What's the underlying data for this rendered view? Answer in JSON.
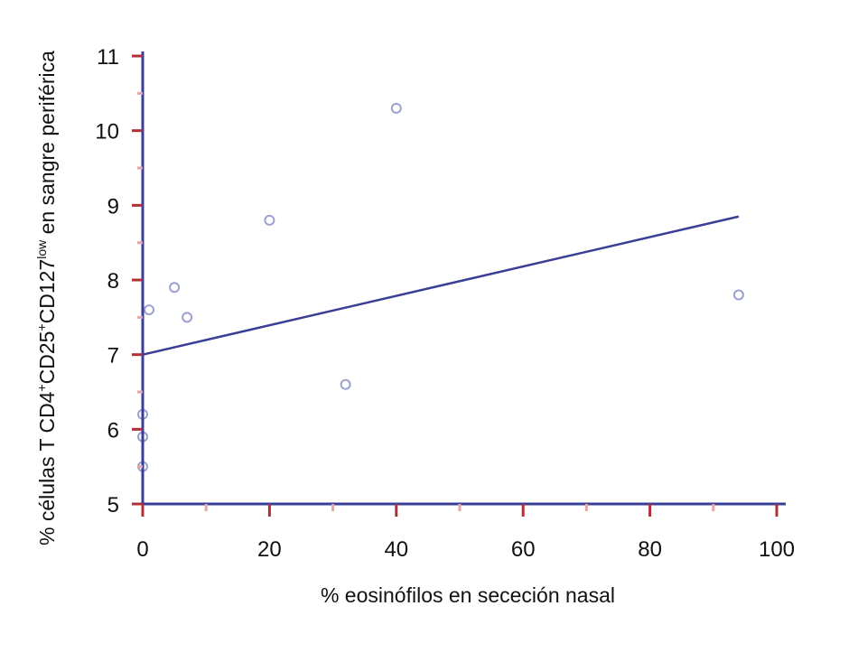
{
  "chart_data": {
    "type": "scatter",
    "title": "",
    "xlabel": "% eosinófilos en sececión nasal",
    "ylabel": {
      "prefix": "% células T CD4",
      "sup1": "+",
      "mid1": "CD25",
      "sup2": "+",
      "mid2": "CD127",
      "sup3": "low",
      "suffix": " en sangre periférica"
    },
    "xlim": [
      0,
      100
    ],
    "ylim": [
      5,
      11
    ],
    "x_ticks": [
      0,
      20,
      40,
      60,
      80,
      100
    ],
    "y_ticks": [
      5,
      6,
      7,
      8,
      9,
      10,
      11
    ],
    "points": [
      {
        "x": 0,
        "y": 5.5
      },
      {
        "x": 0,
        "y": 5.9
      },
      {
        "x": 0,
        "y": 6.2
      },
      {
        "x": 1,
        "y": 7.6
      },
      {
        "x": 5,
        "y": 7.9
      },
      {
        "x": 7,
        "y": 7.5
      },
      {
        "x": 20,
        "y": 8.8
      },
      {
        "x": 32,
        "y": 6.6
      },
      {
        "x": 40,
        "y": 10.3
      },
      {
        "x": 94,
        "y": 7.8
      }
    ],
    "trendline": {
      "x": [
        0,
        94
      ],
      "y": [
        7.0,
        8.85
      ]
    },
    "colors": {
      "axis": "#3a3f95",
      "line": "#3a3f95",
      "marker": "#9aa0cf",
      "tick_major": "#b0303a",
      "tick_minor": "#e6a6a6"
    },
    "grid": false
  }
}
